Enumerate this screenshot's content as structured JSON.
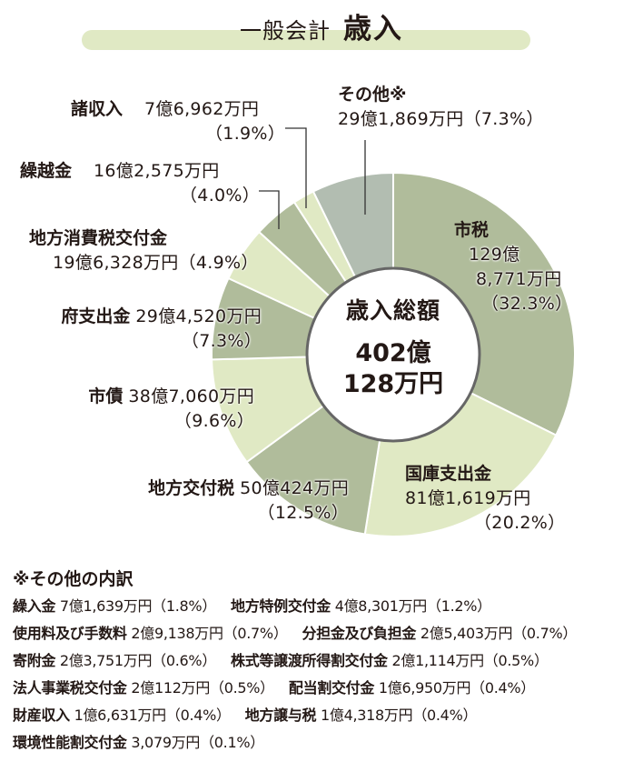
{
  "header": {
    "subtitle": "一般会計",
    "title": "歳入"
  },
  "center": {
    "label": "歳入総額",
    "value_line1": "402億",
    "value_line2": "128万円"
  },
  "labels": {
    "shizei": {
      "name": "市税",
      "amount_l1": "129億",
      "amount_l2": "8,771万円",
      "pct": "（32.3%）"
    },
    "kokko": {
      "name": "国庫支出金",
      "amount": "81億1,619万円",
      "pct": "（20.2%）"
    },
    "chihou_koufuzei": {
      "name": "地方交付税",
      "amount": "50億424万円",
      "pct": "（12.5%）"
    },
    "shisai": {
      "name": "市債",
      "amount": "38億7,060万円",
      "pct": "（9.6%）"
    },
    "fushishutsu": {
      "name": "府支出金",
      "amount": "29億4,520万円",
      "pct": "（7.3%）"
    },
    "shouhizei": {
      "name": "地方消費税交付金",
      "amount": "19億6,328万円（4.9%）"
    },
    "kurikoshi": {
      "name": "繰越金",
      "amount": "16億2,575万円",
      "pct": "（4.0%）"
    },
    "shoshuunyuu": {
      "name": "諸収入",
      "amount": "7億6,962万円",
      "pct": "（1.9%）"
    },
    "sonota": {
      "name": "その他※",
      "amount": "29億1,869万円（7.3%）"
    }
  },
  "notes": {
    "title": "※その他の内訳",
    "rows": [
      [
        {
          "name": "繰入金",
          "value": "7億1,639万円（1.8%）"
        },
        {
          "name": "地方特例交付金",
          "value": "4億8,301万円（1.2%）"
        }
      ],
      [
        {
          "name": "使用料及び手数料",
          "value": "2億9,138万円（0.7%）"
        },
        {
          "name": "分担金及び負担金",
          "value": "2億5,403万円（0.7%）"
        }
      ],
      [
        {
          "name": "寄附金",
          "value": "2億3,751万円（0.6%）"
        },
        {
          "name": "株式等譲渡所得割交付金",
          "value": "2億1,114万円（0.5%）"
        }
      ],
      [
        {
          "name": "法人事業税交付金",
          "value": "2億112万円（0.5%）"
        },
        {
          "name": "配当割交付金",
          "value": "1億6,950万円（0.4%）"
        }
      ],
      [
        {
          "name": "財産収入",
          "value": "1億6,631万円（0.4%）"
        },
        {
          "name": "地方譲与税",
          "value": "1億4,318万円（0.4%）"
        }
      ],
      [
        {
          "name": "環境性能割交付金",
          "value": "3,079万円（0.1%）"
        }
      ]
    ]
  },
  "colors": {
    "dark": "#b0bc9b",
    "light": "#e0e9c4",
    "other": "#b2bdb1",
    "title_bar": "#e0e9c4",
    "center_ring": "#666666",
    "text": "#231815"
  },
  "chart_data": {
    "type": "pie",
    "subtype": "donut",
    "title": "一般会計 歳入",
    "center_label": "歳入総額 402億128万円",
    "total_oku_yen": 402.0128,
    "unit": "億円",
    "start_angle": "12 o'clock, clockwise",
    "categories": [
      "市税",
      "国庫支出金",
      "地方交付税",
      "市債",
      "府支出金",
      "地方消費税交付金",
      "繰越金",
      "諸収入",
      "その他"
    ],
    "values": [
      129.8771,
      81.1619,
      50.0424,
      38.706,
      29.452,
      19.6328,
      16.2575,
      7.6962,
      29.1869
    ],
    "percentages": [
      32.3,
      20.2,
      12.5,
      9.6,
      7.3,
      4.9,
      4.0,
      1.9,
      7.3
    ],
    "value_labels": [
      "129億8,771万円",
      "81億1,619万円",
      "50億424万円",
      "38億7,060万円",
      "29億4,520万円",
      "19億6,328万円",
      "16億2,575万円",
      "7億6,962万円",
      "29億1,869万円"
    ],
    "slice_colors": [
      "#b0bc9b",
      "#e0e9c4",
      "#b0bc9b",
      "#e0e9c4",
      "#b0bc9b",
      "#e0e9c4",
      "#b0bc9b",
      "#e0e9c4",
      "#b2bdb1"
    ],
    "sonota_breakdown": {
      "categories": [
        "繰入金",
        "地方特例交付金",
        "使用料及び手数料",
        "分担金及び負担金",
        "寄附金",
        "株式等譲渡所得割交付金",
        "法人事業税交付金",
        "配当割交付金",
        "財産収入",
        "地方譲与税",
        "環境性能割交付金"
      ],
      "values_man_yen": [
        71639,
        48301,
        29138,
        25403,
        23751,
        21114,
        20112,
        16950,
        16631,
        14318,
        3079
      ],
      "percentages": [
        1.8,
        1.2,
        0.7,
        0.7,
        0.6,
        0.5,
        0.5,
        0.4,
        0.4,
        0.4,
        0.1
      ]
    }
  }
}
